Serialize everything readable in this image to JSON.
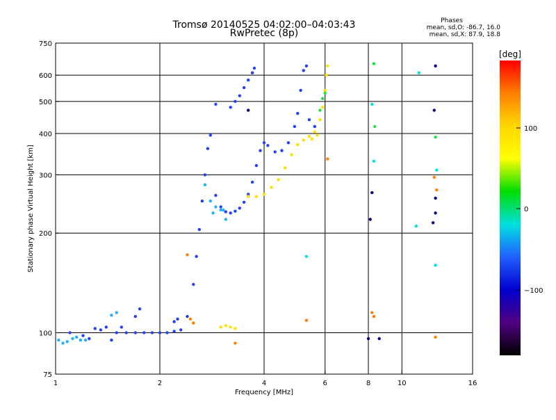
{
  "title": "Tromsø 20140525 04:02:00–04:03:43",
  "subtitle": "RwPretec (8p)",
  "stats": {
    "heading": "Phases",
    "line1": "mean, sd,O: -86.7, 16.0",
    "line2": "mean, sd,X:  87.9, 18.8"
  },
  "colorbar": {
    "label": "[deg]",
    "ticks": [
      "100",
      "0",
      "−100"
    ],
    "colors": [
      "#ff0000",
      "#ff7f00",
      "#ffd700",
      "#ffff00",
      "#00dd00",
      "#00e0e0",
      "#2060ff",
      "#0000cc",
      "#500080",
      "#000000"
    ]
  },
  "chart_data": {
    "type": "scatter",
    "xlabel": "Frequency [MHz]",
    "ylabel": "Stationary phase Virtual Height [km]",
    "xscale": "log",
    "yscale": "log",
    "xlim": [
      1,
      16
    ],
    "ylim": [
      75,
      750
    ],
    "x_ticks": [
      "1",
      "2",
      "4",
      "6",
      "8",
      "10",
      "16"
    ],
    "y_ticks": [
      "75",
      "100",
      "200",
      "300",
      "400",
      "500",
      "600",
      "750"
    ],
    "series": [
      {
        "color": "#2040ff",
        "points": [
          [
            1.1,
            100
          ],
          [
            1.2,
            98
          ],
          [
            1.3,
            103
          ],
          [
            1.4,
            104
          ],
          [
            1.5,
            100
          ],
          [
            1.6,
            100
          ],
          [
            1.7,
            100
          ],
          [
            1.8,
            100
          ],
          [
            1.9,
            100
          ],
          [
            2.0,
            100
          ],
          [
            2.1,
            100
          ],
          [
            2.2,
            101
          ],
          [
            2.3,
            102
          ],
          [
            2.4,
            112
          ],
          [
            2.5,
            140
          ],
          [
            2.55,
            170
          ],
          [
            2.6,
            205
          ],
          [
            2.65,
            250
          ],
          [
            2.7,
            300
          ],
          [
            2.75,
            360
          ],
          [
            2.8,
            395
          ],
          [
            2.9,
            260
          ],
          [
            3.0,
            240
          ],
          [
            3.1,
            232
          ],
          [
            3.2,
            230
          ],
          [
            3.3,
            233
          ],
          [
            3.4,
            238
          ],
          [
            3.5,
            248
          ],
          [
            3.6,
            262
          ],
          [
            3.7,
            285
          ],
          [
            3.8,
            320
          ],
          [
            3.9,
            355
          ],
          [
            4.0,
            375
          ],
          [
            4.1,
            368
          ],
          [
            4.3,
            352
          ],
          [
            4.5,
            355
          ],
          [
            4.7,
            375
          ],
          [
            4.9,
            420
          ],
          [
            5.0,
            460
          ],
          [
            5.1,
            540
          ],
          [
            5.2,
            620
          ],
          [
            5.3,
            640
          ],
          [
            3.2,
            480
          ],
          [
            3.3,
            500
          ],
          [
            3.4,
            520
          ],
          [
            3.5,
            550
          ],
          [
            3.6,
            580
          ],
          [
            3.7,
            610
          ],
          [
            3.75,
            630
          ],
          [
            2.9,
            490
          ],
          [
            5.4,
            440
          ],
          [
            5.6,
            420
          ],
          [
            1.35,
            102
          ],
          [
            1.45,
            95
          ],
          [
            1.55,
            104
          ],
          [
            1.25,
            96
          ],
          [
            1.7,
            112
          ],
          [
            1.75,
            118
          ],
          [
            2.2,
            108
          ],
          [
            2.25,
            110
          ]
        ]
      },
      {
        "color": "#20b0ff",
        "points": [
          [
            1.02,
            95
          ],
          [
            1.05,
            93
          ],
          [
            1.08,
            94
          ],
          [
            1.12,
            96
          ],
          [
            1.15,
            97
          ],
          [
            1.18,
            95
          ],
          [
            1.22,
            95
          ],
          [
            2.7,
            280
          ],
          [
            2.8,
            250
          ],
          [
            2.9,
            240
          ],
          [
            3.0,
            235
          ],
          [
            3.1,
            220
          ],
          [
            3.05,
            235
          ],
          [
            2.85,
            230
          ],
          [
            1.45,
            113
          ],
          [
            1.5,
            115
          ]
        ]
      },
      {
        "color": "#ffe000",
        "points": [
          [
            3.0,
            104
          ],
          [
            3.1,
            105
          ],
          [
            3.2,
            104
          ],
          [
            3.3,
            103
          ],
          [
            3.6,
            258
          ],
          [
            3.8,
            258
          ],
          [
            4.0,
            262
          ],
          [
            4.2,
            275
          ],
          [
            4.4,
            290
          ],
          [
            4.6,
            315
          ],
          [
            4.8,
            345
          ],
          [
            5.0,
            370
          ],
          [
            5.2,
            382
          ],
          [
            5.4,
            392
          ],
          [
            5.6,
            405
          ],
          [
            5.8,
            440
          ],
          [
            5.9,
            480
          ],
          [
            6.0,
            540
          ],
          [
            6.05,
            600
          ],
          [
            6.1,
            640
          ],
          [
            5.5,
            385
          ],
          [
            5.7,
            395
          ]
        ]
      },
      {
        "color": "#20e040",
        "points": [
          [
            5.8,
            470
          ],
          [
            5.9,
            510
          ],
          [
            6.0,
            530
          ],
          [
            8.3,
            650
          ],
          [
            8.35,
            420
          ],
          [
            12.5,
            390
          ]
        ]
      },
      {
        "color": "#ff8000",
        "points": [
          [
            2.4,
            172
          ],
          [
            2.45,
            110
          ],
          [
            2.5,
            107
          ],
          [
            3.3,
            93
          ],
          [
            5.3,
            109
          ],
          [
            8.2,
            115
          ],
          [
            8.3,
            112
          ],
          [
            12.5,
            97
          ],
          [
            12.4,
            295
          ],
          [
            12.6,
            270
          ],
          [
            6.1,
            335
          ]
        ]
      },
      {
        "color": "#000080",
        "points": [
          [
            8.1,
            220
          ],
          [
            8.2,
            265
          ],
          [
            8.6,
            96
          ],
          [
            12.5,
            640
          ],
          [
            12.4,
            470
          ],
          [
            12.5,
            255
          ],
          [
            12.5,
            230
          ],
          [
            12.3,
            215
          ],
          [
            8.0,
            96
          ],
          [
            3.6,
            470
          ]
        ]
      },
      {
        "color": "#00e0e0",
        "points": [
          [
            8.2,
            490
          ],
          [
            8.3,
            330
          ],
          [
            11.2,
            610
          ],
          [
            11.0,
            210
          ],
          [
            5.3,
            170
          ],
          [
            12.5,
            160
          ],
          [
            12.6,
            310
          ]
        ]
      }
    ]
  }
}
